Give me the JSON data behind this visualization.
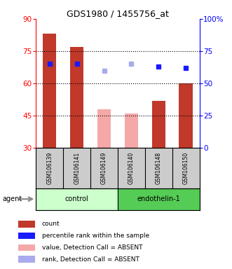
{
  "title": "GDS1980 / 1455756_at",
  "samples": [
    "GSM106139",
    "GSM106141",
    "GSM106149",
    "GSM106140",
    "GSM106148",
    "GSM106150"
  ],
  "groups": [
    "control",
    "control",
    "control",
    "endothelin-1",
    "endothelin-1",
    "endothelin-1"
  ],
  "bar_values": [
    83,
    77,
    48,
    46,
    52,
    60
  ],
  "bar_absent": [
    false,
    false,
    true,
    true,
    false,
    false
  ],
  "rank_values": [
    65,
    65,
    60,
    65,
    63,
    62
  ],
  "rank_absent": [
    false,
    false,
    true,
    true,
    false,
    false
  ],
  "bar_color_present": "#c0392b",
  "bar_color_absent": "#f4a9a8",
  "rank_color_present": "#1a1aff",
  "rank_color_absent": "#aaaaee",
  "ylim_left": [
    30,
    90
  ],
  "ylim_right": [
    0,
    100
  ],
  "yticks_left": [
    30,
    45,
    60,
    75,
    90
  ],
  "yticks_right": [
    0,
    25,
    50,
    75,
    100
  ],
  "ytick_labels_right": [
    "0",
    "25",
    "50",
    "75",
    "100%"
  ],
  "hlines": [
    45,
    60,
    75
  ],
  "bar_width": 0.5,
  "group_colors": {
    "control": "#ccffcc",
    "endothelin-1": "#55cc55"
  },
  "sample_row_color": "#cccccc",
  "agent_label": "agent",
  "legend_items": [
    {
      "label": "count",
      "color": "#c0392b"
    },
    {
      "label": "percentile rank within the sample",
      "color": "#1a1aff"
    },
    {
      "label": "value, Detection Call = ABSENT",
      "color": "#f4a9a8"
    },
    {
      "label": "rank, Detection Call = ABSENT",
      "color": "#aaaaee"
    }
  ]
}
